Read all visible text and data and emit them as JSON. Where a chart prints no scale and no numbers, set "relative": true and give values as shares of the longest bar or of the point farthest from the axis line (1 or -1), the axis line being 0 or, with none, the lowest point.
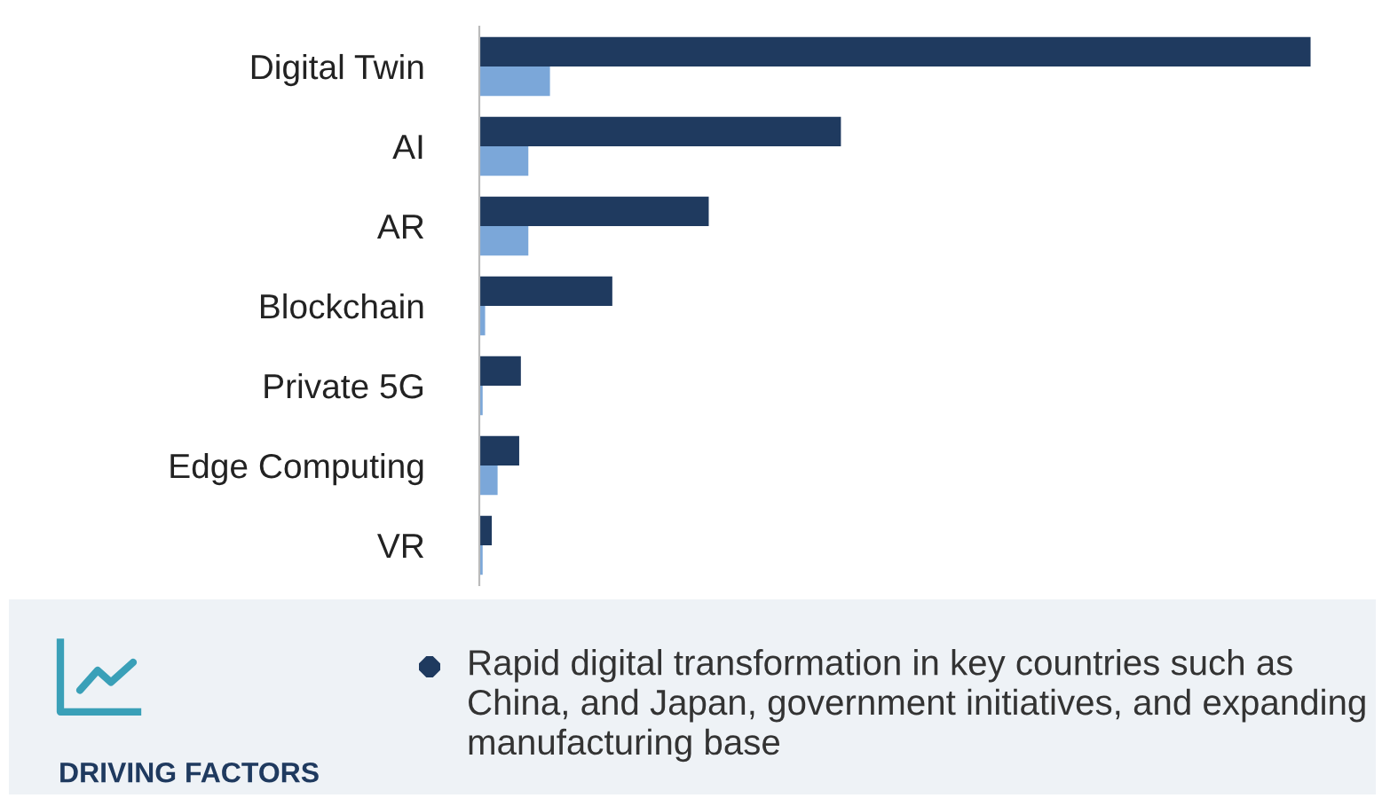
{
  "chart_data": [
    {
      "type": "bar",
      "orientation": "horizontal",
      "relative": true,
      "grid": false,
      "legend": false,
      "categories": [
        "Digital Twin",
        "AI",
        "AR",
        "Blockchain",
        "Private 5G",
        "Edge Computing",
        "VR"
      ],
      "series": [
        {
          "color": "#1f3a5f",
          "values": [
            1,
            0.435,
            0.276,
            0.16,
            0.05,
            0.048,
            0.015
          ]
        },
        {
          "color": "#7ba7d9",
          "values": [
            0.085,
            0.059,
            0.059,
            0.007,
            0.004,
            0.022,
            0.004
          ]
        }
      ]
    },
    {
      "type": "other",
      "title": "DRIVING FACTORS",
      "annotations": [
        "Rapid digital transformation in key countries such as China, and Japan, government initiatives, and expanding manufacturing base"
      ]
    }
  ]
}
